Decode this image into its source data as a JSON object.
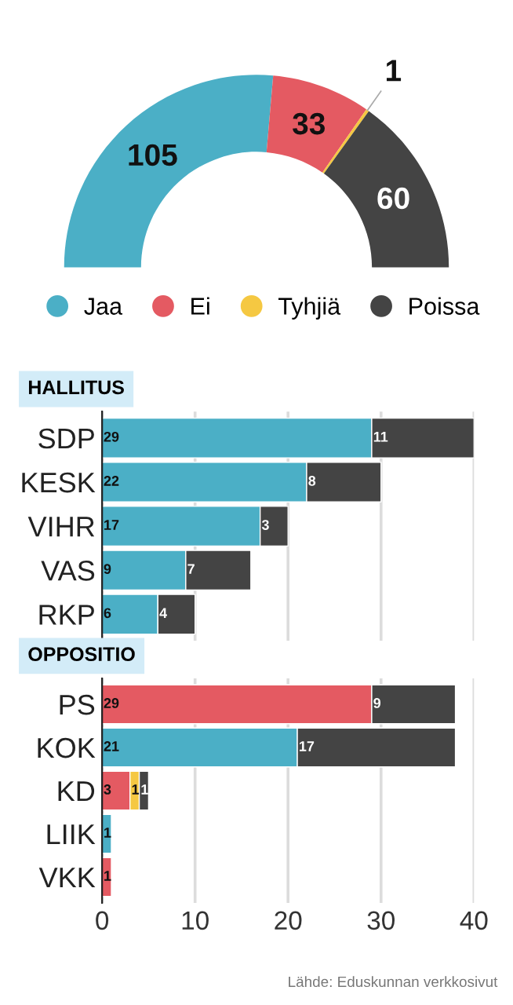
{
  "chart_data": [
    {
      "type": "donut",
      "categories": [
        "Jaa",
        "Ei",
        "Tyhjiä",
        "Poissa"
      ],
      "values": [
        105,
        33,
        1,
        60
      ],
      "colors": [
        "#4bafc6",
        "#e45a62",
        "#f5c842",
        "#444444"
      ],
      "data_labels": true,
      "legend": "bottom"
    },
    {
      "type": "bar",
      "title": "HALLITUS",
      "orientation": "horizontal",
      "stacked": true,
      "categories": [
        "SDP",
        "KESK",
        "VIHR",
        "VAS",
        "RKP"
      ],
      "series": [
        {
          "color": "#4bafc6",
          "values": [
            29,
            22,
            17,
            9,
            6
          ]
        },
        {
          "color": "#444444",
          "values": [
            11,
            8,
            3,
            7,
            4
          ]
        }
      ],
      "xlim": [
        0,
        40
      ],
      "xticks": [
        0,
        10,
        20,
        30,
        40
      ],
      "grid": "x",
      "data_labels": true,
      "tick_labels": "y"
    },
    {
      "type": "bar",
      "title": "OPPOSITIO",
      "orientation": "horizontal",
      "stacked": true,
      "categories": [
        "PS",
        "KOK",
        "KD",
        "LIIK",
        "VKK"
      ],
      "series": [
        {
          "color": "#4bafc6",
          "values": [
            null,
            21,
            null,
            1,
            null
          ]
        },
        {
          "color": "#e45a62",
          "values": [
            29,
            null,
            3,
            null,
            1
          ]
        },
        {
          "color": "#f5c842",
          "values": [
            null,
            null,
            1,
            null,
            null
          ]
        },
        {
          "color": "#444444",
          "values": [
            9,
            17,
            1,
            null,
            null
          ]
        }
      ],
      "xlim": [
        0,
        40
      ],
      "xticks": [
        0,
        10,
        20,
        30,
        40
      ],
      "grid": "x",
      "data_labels": true,
      "annotations": [
        "Lähde: Eduskunnan verkkosivut"
      ]
    }
  ]
}
